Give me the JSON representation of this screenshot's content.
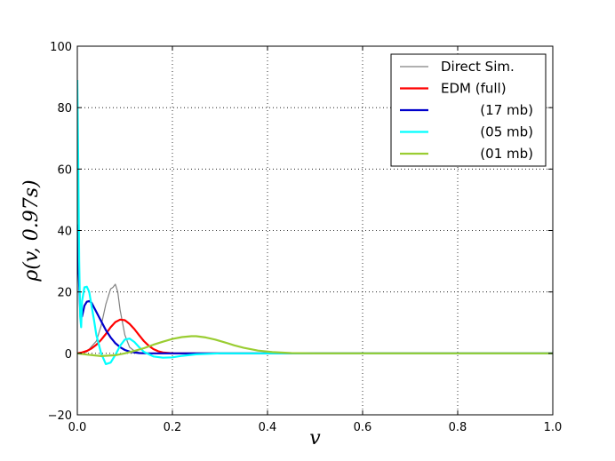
{
  "chart_data": {
    "type": "line",
    "xlabel": "v",
    "ylabel": "ρ(v, 0.97s)",
    "xlim": [
      0.0,
      1.0
    ],
    "ylim": [
      -20,
      100
    ],
    "xticks": [
      "0.0",
      "0.2",
      "0.4",
      "0.6",
      "0.8",
      "1.0"
    ],
    "yticks": [
      "−20",
      "0",
      "20",
      "40",
      "60",
      "80",
      "100"
    ],
    "grid": true,
    "legend_position": "top-right",
    "series": [
      {
        "name": "Direct Sim.",
        "color": "#808080",
        "width": 1.2,
        "x": [
          0.0,
          0.02,
          0.04,
          0.05,
          0.06,
          0.07,
          0.075,
          0.08,
          0.085,
          0.09,
          0.1,
          0.11,
          0.12,
          0.13,
          0.15,
          0.2,
          1.0
        ],
        "y": [
          0,
          0.5,
          4,
          9,
          16,
          21,
          21.5,
          22.5,
          20,
          14,
          6,
          2,
          0.8,
          0.3,
          0,
          0,
          0
        ]
      },
      {
        "name": "EDM (full)",
        "color": "#ff0000",
        "width": 2.2,
        "x": [
          0.0,
          0.01,
          0.02,
          0.03,
          0.04,
          0.05,
          0.06,
          0.07,
          0.08,
          0.09,
          0.1,
          0.11,
          0.12,
          0.13,
          0.14,
          0.15,
          0.16,
          0.17,
          0.18,
          0.2,
          0.25,
          1.0
        ],
        "y": [
          0,
          0.3,
          0.8,
          1.6,
          2.8,
          4.4,
          6.3,
          8.5,
          10.2,
          11.0,
          10.8,
          9.6,
          7.9,
          5.9,
          4.0,
          2.5,
          1.4,
          0.7,
          0.3,
          0.05,
          0,
          0
        ]
      },
      {
        "name": "(17 mb)",
        "color": "#0000cc",
        "width": 2.2,
        "x": [
          0.0,
          0.003,
          0.006,
          0.01,
          0.015,
          0.02,
          0.025,
          0.03,
          0.035,
          0.04,
          0.05,
          0.06,
          0.07,
          0.08,
          0.09,
          0.1,
          0.11,
          0.12,
          0.13,
          0.14,
          0.16,
          0.2,
          1.0
        ],
        "y": [
          42,
          26,
          14,
          12,
          15.5,
          16.8,
          17.0,
          16.5,
          15.0,
          13.5,
          10.5,
          7.6,
          5.2,
          3.3,
          2.0,
          1.1,
          0.6,
          0.3,
          0.1,
          0.05,
          0,
          0,
          0
        ]
      },
      {
        "name": "(05 mb)",
        "color": "#00ffff",
        "width": 2.2,
        "x": [
          0.0,
          0.002,
          0.004,
          0.006,
          0.008,
          0.01,
          0.015,
          0.02,
          0.025,
          0.03,
          0.035,
          0.04,
          0.05,
          0.06,
          0.07,
          0.08,
          0.09,
          0.1,
          0.11,
          0.12,
          0.13,
          0.14,
          0.16,
          0.18,
          0.2,
          0.22,
          0.25,
          0.3,
          0.35,
          1.0
        ],
        "y": [
          89,
          60,
          30,
          12,
          8.5,
          17,
          21.5,
          21.7,
          20.0,
          15.5,
          11,
          6,
          0,
          -3.5,
          -3.0,
          -0.5,
          2.5,
          4.5,
          4.8,
          3.7,
          2.0,
          0.5,
          -1.0,
          -1.4,
          -1.3,
          -0.8,
          -0.3,
          0,
          0,
          0
        ]
      },
      {
        "name": "(01 mb)",
        "color": "#9acd32",
        "width": 2.2,
        "x": [
          0.0,
          0.02,
          0.05,
          0.08,
          0.1,
          0.12,
          0.14,
          0.16,
          0.18,
          0.2,
          0.22,
          0.24,
          0.25,
          0.27,
          0.29,
          0.31,
          0.33,
          0.35,
          0.38,
          0.41,
          0.45,
          0.5,
          0.6,
          1.0
        ],
        "y": [
          0,
          -0.4,
          -0.9,
          -0.6,
          0,
          0.8,
          1.7,
          2.8,
          3.8,
          4.7,
          5.3,
          5.6,
          5.6,
          5.2,
          4.5,
          3.6,
          2.6,
          1.8,
          0.9,
          0.4,
          0.1,
          0,
          0,
          0
        ]
      }
    ]
  }
}
